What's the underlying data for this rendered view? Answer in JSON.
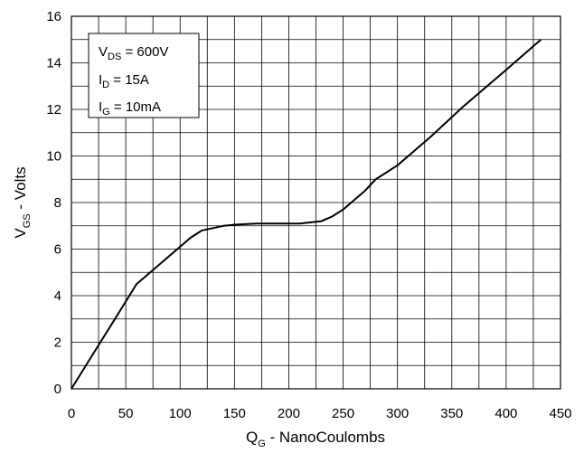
{
  "chart_data": {
    "type": "line",
    "title": "",
    "xlabel": {
      "main": "Q",
      "sub": "G",
      "rest": " - NanoCoulombs"
    },
    "ylabel": {
      "main": "V",
      "sub": "GS",
      "rest": " - Volts"
    },
    "xlim": [
      0,
      450
    ],
    "ylim": [
      0,
      16
    ],
    "x_ticks": [
      "0",
      "50",
      "100",
      "150",
      "200",
      "250",
      "300",
      "350",
      "400",
      "450"
    ],
    "y_ticks": [
      "0",
      "2",
      "4",
      "6",
      "8",
      "10",
      "12",
      "14",
      "16"
    ],
    "grid": true,
    "legend_position": "top-left",
    "conditions": [
      {
        "main": "V",
        "sub": "DS",
        "rest": " = 600V"
      },
      {
        "main": "I",
        "sub": "D",
        "rest": " = 15A"
      },
      {
        "main": "I",
        "sub": "G",
        "rest": " = 10mA"
      }
    ],
    "series": [
      {
        "x": [
          0,
          20,
          40,
          60,
          80,
          100,
          110,
          120,
          130,
          140,
          150,
          170,
          200,
          210,
          230,
          240,
          250,
          260,
          270,
          280,
          300,
          330,
          360,
          400,
          432
        ],
        "y": [
          0,
          1.5,
          3.0,
          4.5,
          5.3,
          6.1,
          6.5,
          6.8,
          6.9,
          7.0,
          7.05,
          7.1,
          7.1,
          7.1,
          7.2,
          7.4,
          7.7,
          8.1,
          8.5,
          9.0,
          9.6,
          10.8,
          12.1,
          13.7,
          15.0
        ]
      }
    ],
    "colors": {
      "line": "#000000",
      "grid": "#000000",
      "background": "#ffffff"
    }
  }
}
